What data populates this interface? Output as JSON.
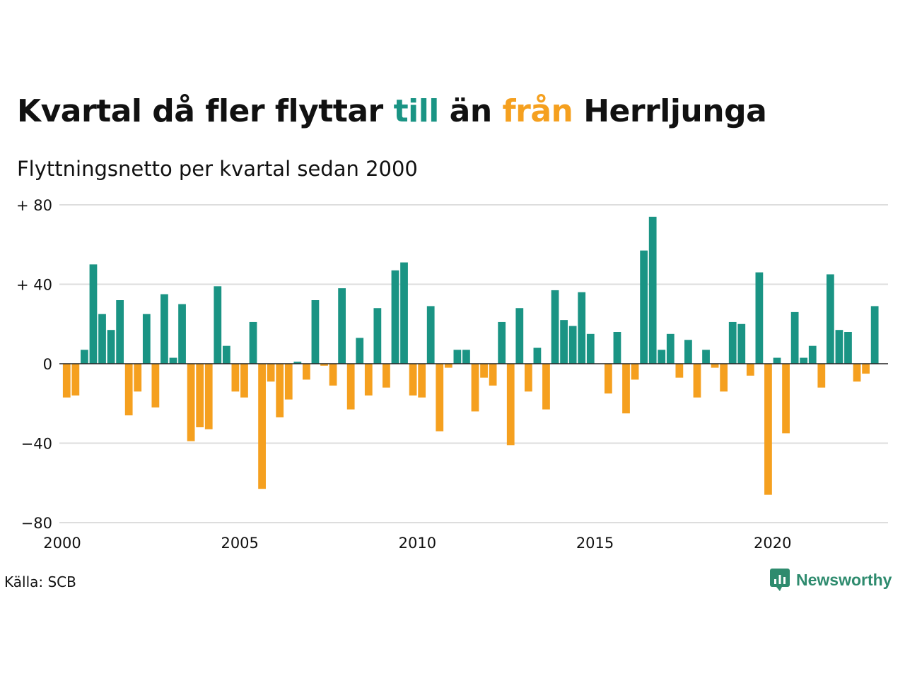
{
  "title": {
    "part1": "Kvartal då fler flyttar ",
    "till": "till",
    "part2": " än ",
    "fran": "från",
    "part3": " Herrljunga"
  },
  "subtitle": "Flyttningsnetto per kvartal sedan 2000",
  "source": "Källa: SCB",
  "brand": {
    "name": "Newsworthy",
    "icon": "newsworthy-logo-icon"
  },
  "colors": {
    "positive": "#1a9484",
    "negative": "#f5a01f",
    "grid": "#dddddd",
    "text": "#111111"
  },
  "chart_data": {
    "type": "bar",
    "title": "Kvartal då fler flyttar till än från Herrljunga",
    "subtitle": "Flyttningsnetto per kvartal sedan 2000",
    "x_start": 2000.0,
    "x_step": 0.25,
    "xlim": [
      2000,
      2023.25
    ],
    "ylim": [
      -80,
      80
    ],
    "x_ticks": [
      2000,
      2005,
      2010,
      2015,
      2020
    ],
    "x_tick_labels": [
      "2000",
      "2005",
      "2010",
      "2015",
      "2020"
    ],
    "y_ticks": [
      80,
      40,
      0,
      -40,
      -80
    ],
    "y_tick_labels": [
      "+ 80",
      "+ 40",
      "0",
      "−40",
      "−80"
    ],
    "grid": true,
    "values": [
      -17,
      -16,
      7,
      50,
      25,
      17,
      32,
      -26,
      -14,
      25,
      -22,
      35,
      3,
      30,
      -39,
      -32,
      -33,
      39,
      9,
      -14,
      -17,
      21,
      -63,
      -9,
      -27,
      -18,
      1,
      -8,
      32,
      -1,
      -11,
      38,
      -23,
      13,
      -16,
      28,
      -12,
      47,
      51,
      -16,
      -17,
      29,
      -34,
      -2,
      7,
      7,
      -24,
      -7,
      -11,
      21,
      -41,
      28,
      -14,
      8,
      -23,
      37,
      22,
      19,
      36,
      15,
      0,
      -15,
      16,
      -25,
      -8,
      57,
      74,
      7,
      15,
      -7,
      12,
      -17,
      7,
      -2,
      -14,
      21,
      20,
      -6,
      46,
      -66,
      3,
      -35,
      26,
      3,
      9,
      -12,
      45,
      17,
      16,
      -9,
      -5,
      29
    ]
  }
}
